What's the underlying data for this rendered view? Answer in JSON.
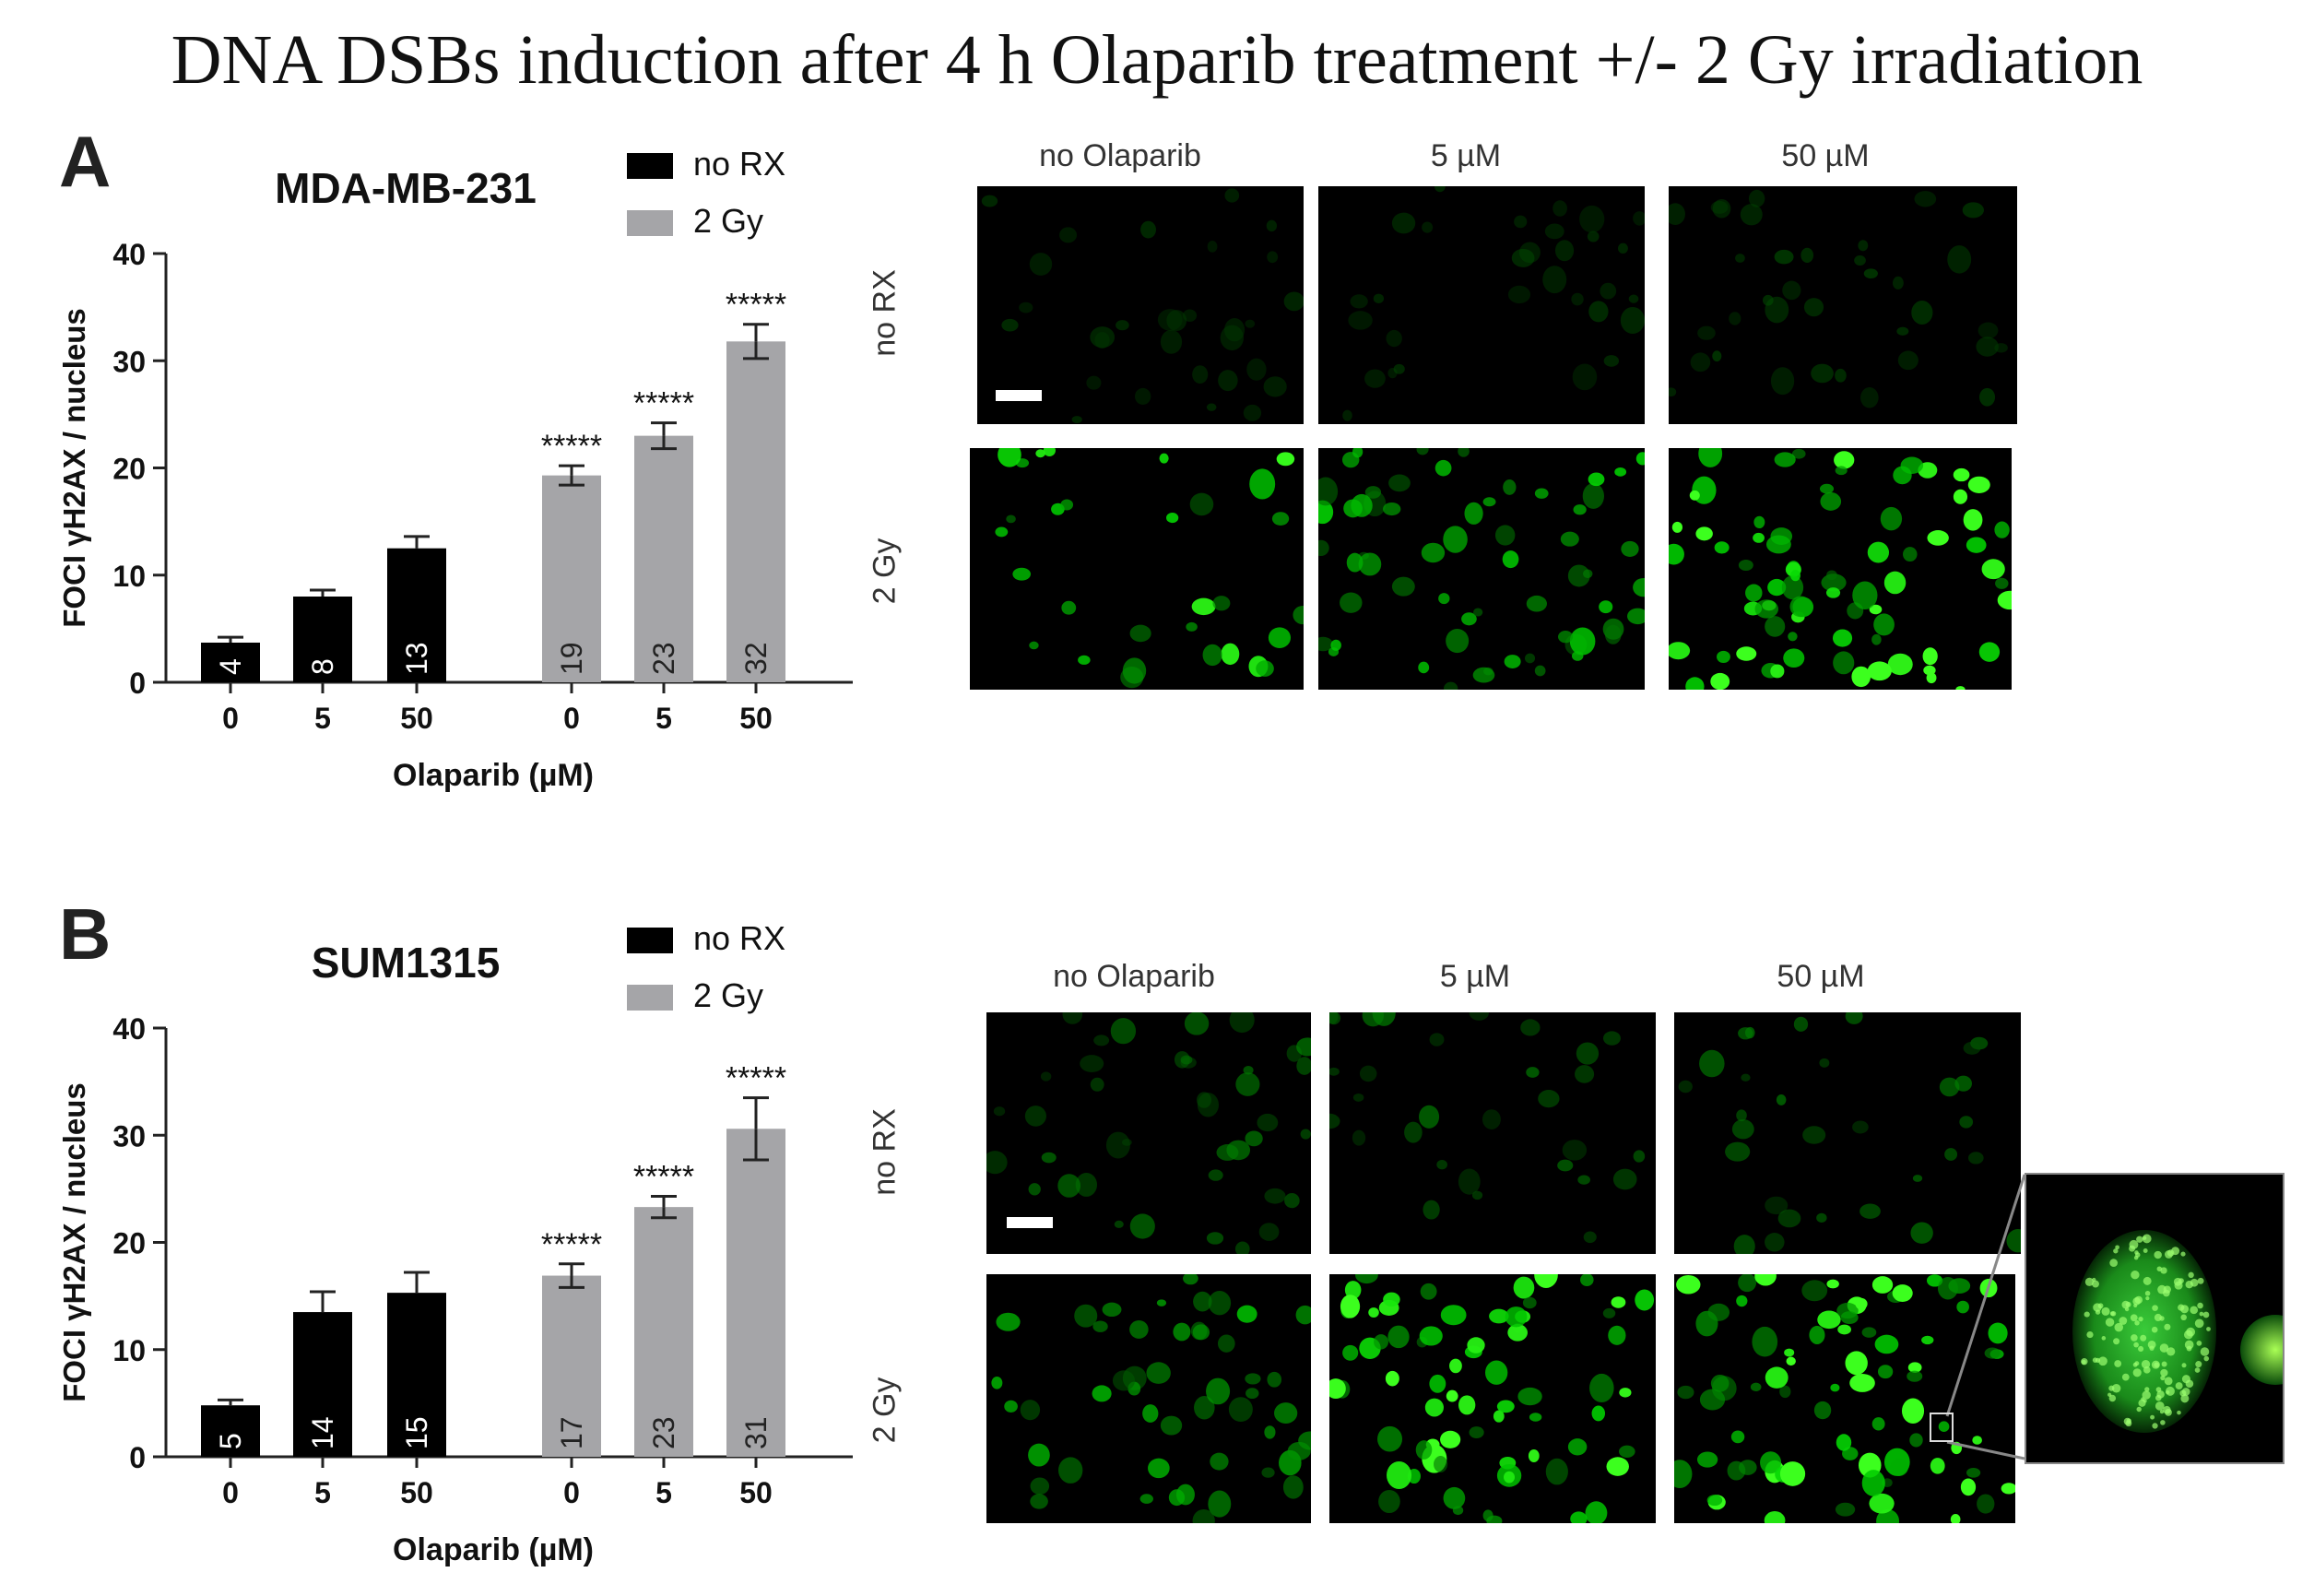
{
  "figure": {
    "title": "DNA DSBs induction after 4 h Olaparib treatment +/- 2 Gy irradiation"
  },
  "panels": [
    {
      "letter": "A",
      "microscopy": {
        "col_labels": [
          "no Olaparib",
          "5 µM",
          "50 µM"
        ],
        "row_labels": [
          "no RX",
          "2 Gy"
        ]
      }
    },
    {
      "letter": "B",
      "microscopy": {
        "col_labels": [
          "no Olaparib",
          "5 µM",
          "50 µM"
        ],
        "row_labels": [
          "no RX",
          "2 Gy"
        ]
      }
    }
  ],
  "chart_data": [
    {
      "type": "bar",
      "title": "MDA-MB-231",
      "xlabel": "Olaparib (µM)",
      "ylabel": "FOCI γH2AX / nucleus",
      "ylim": [
        0,
        40
      ],
      "yticks": [
        0,
        10,
        20,
        30,
        40
      ],
      "legend_position": "top-right",
      "groups": [
        {
          "name": "no RX",
          "color": "#000000",
          "categories": [
            "0",
            "5",
            "50"
          ],
          "values": [
            3.7,
            8.0,
            12.5
          ],
          "errors": [
            0.5,
            0.6,
            1.1
          ],
          "labels": [
            "4",
            "8",
            "13"
          ],
          "significance": [
            "",
            "",
            ""
          ]
        },
        {
          "name": "2 Gy",
          "color": "#a5a5a8",
          "categories": [
            "0",
            "5",
            "50"
          ],
          "values": [
            19.3,
            23.0,
            31.8
          ],
          "errors": [
            0.9,
            1.2,
            1.6
          ],
          "labels": [
            "19",
            "23",
            "32"
          ],
          "significance": [
            "*****",
            "*****",
            "*****"
          ]
        }
      ]
    },
    {
      "type": "bar",
      "title": "SUM1315",
      "xlabel": "Olaparib (µM)",
      "ylabel": "FOCI γH2AX / nucleus",
      "ylim": [
        0,
        40
      ],
      "yticks": [
        0,
        10,
        20,
        30,
        40
      ],
      "legend_position": "top-right",
      "groups": [
        {
          "name": "no RX",
          "color": "#000000",
          "categories": [
            "0",
            "5",
            "50"
          ],
          "values": [
            4.8,
            13.5,
            15.3
          ],
          "errors": [
            0.5,
            1.9,
            1.9
          ],
          "labels": [
            "5",
            "14",
            "15"
          ],
          "significance": [
            "",
            "",
            ""
          ]
        },
        {
          "name": "2 Gy",
          "color": "#a5a5a8",
          "categories": [
            "0",
            "5",
            "50"
          ],
          "values": [
            16.9,
            23.3,
            30.6
          ],
          "errors": [
            1.1,
            1.0,
            2.9
          ],
          "labels": [
            "17",
            "23",
            "31"
          ],
          "significance": [
            "*****",
            "*****",
            "*****"
          ]
        }
      ]
    }
  ]
}
